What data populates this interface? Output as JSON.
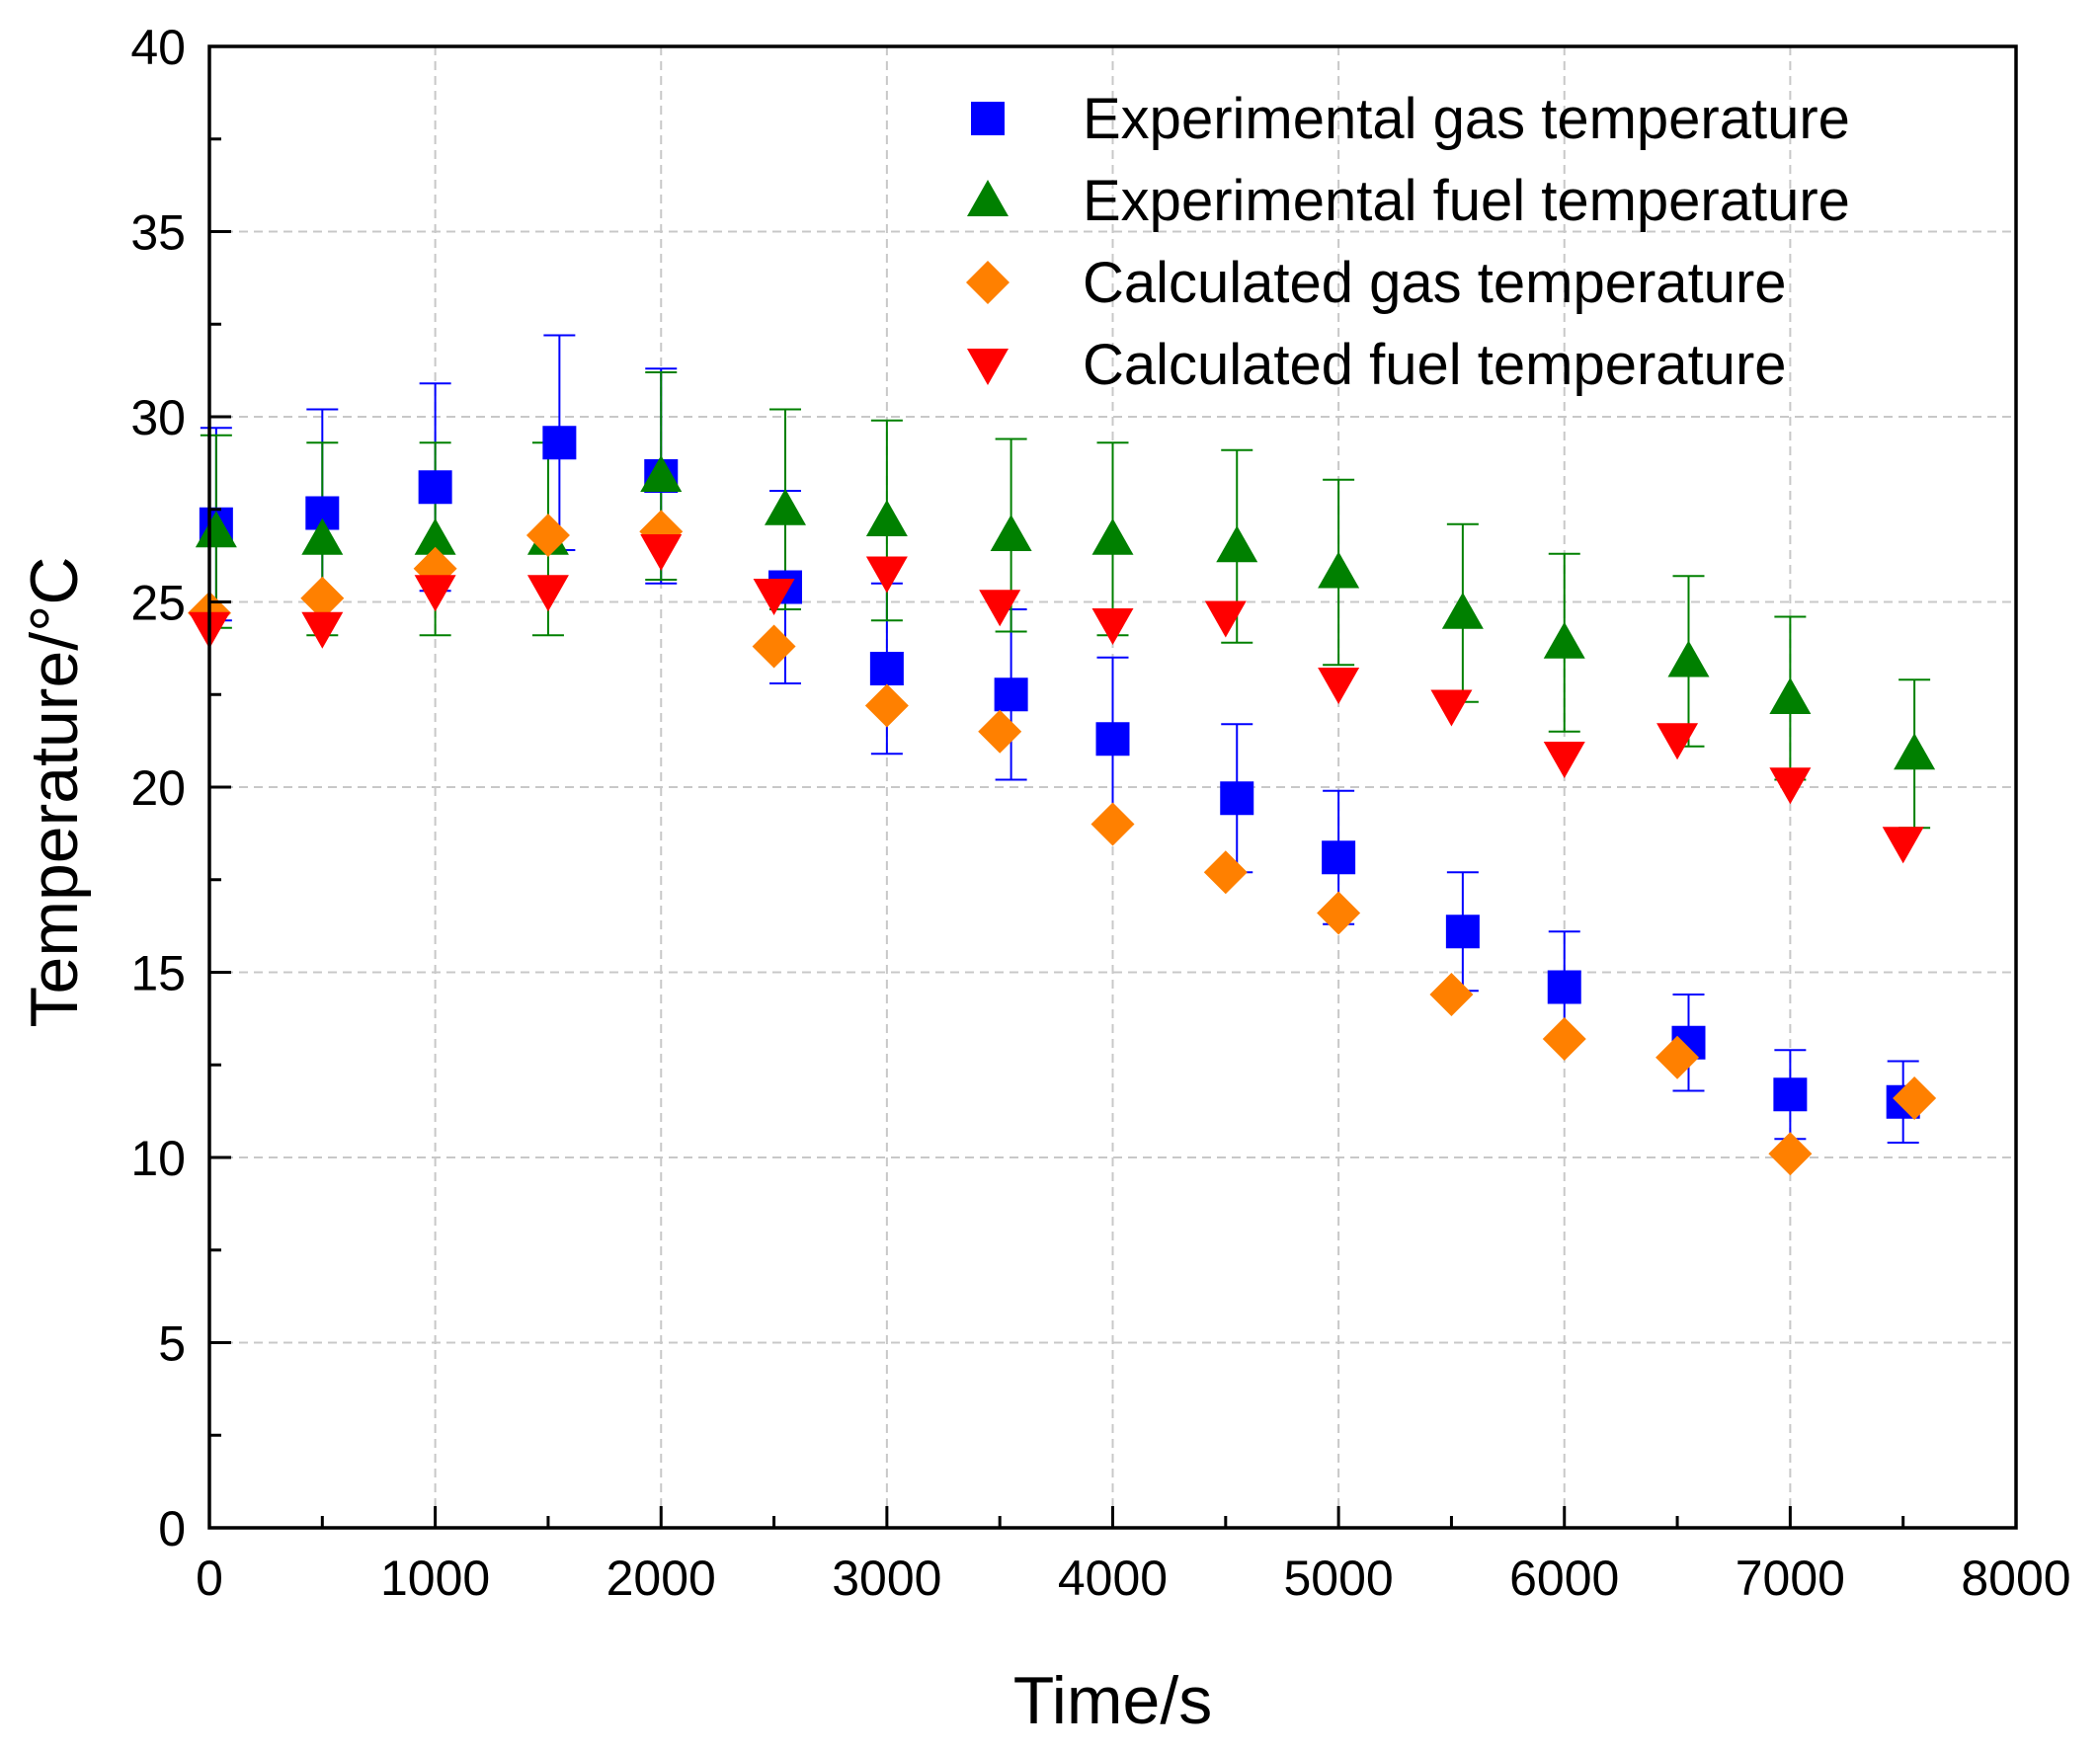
{
  "chart_data": {
    "type": "scatter",
    "title": "",
    "xlabel": "Time/s",
    "ylabel": "Temperature/°C",
    "xlim": [
      0,
      8000
    ],
    "ylim": [
      0,
      40
    ],
    "xticks": [
      "0",
      "1000",
      "2000",
      "3000",
      "4000",
      "5000",
      "6000",
      "7000",
      "8000"
    ],
    "yticks": [
      "0",
      "5",
      "10",
      "15",
      "20",
      "25",
      "30",
      "35",
      "40"
    ],
    "grid": true,
    "legend_position": "top-right",
    "series": [
      {
        "name": "Experimental gas temperature",
        "marker": "square",
        "color": "#0000ff",
        "x": [
          30,
          500,
          1000,
          1550,
          2000,
          2550,
          3000,
          3550,
          4000,
          4550,
          5000,
          5550,
          6000,
          6550,
          7000,
          7500
        ],
        "y": [
          27.1,
          27.4,
          28.1,
          29.3,
          28.4,
          25.4,
          23.2,
          22.5,
          21.3,
          19.7,
          18.1,
          16.1,
          14.6,
          13.1,
          11.7,
          11.5
        ],
        "err": [
          2.6,
          2.8,
          2.8,
          2.9,
          2.9,
          2.6,
          2.3,
          2.3,
          2.2,
          2.0,
          1.8,
          1.6,
          1.5,
          1.3,
          1.2,
          1.1
        ]
      },
      {
        "name": "Experimental fuel temperature",
        "marker": "triangle-up",
        "color": "#008000",
        "x": [
          30,
          500,
          1000,
          1500,
          2000,
          2550,
          3000,
          3550,
          4000,
          4550,
          5000,
          5550,
          6000,
          6550,
          7000,
          7550
        ],
        "y": [
          26.9,
          26.7,
          26.7,
          26.7,
          28.4,
          27.5,
          27.2,
          26.8,
          26.7,
          26.5,
          25.8,
          24.7,
          23.9,
          23.4,
          22.4,
          20.9
        ],
        "err": [
          2.6,
          2.6,
          2.6,
          2.6,
          2.8,
          2.7,
          2.7,
          2.6,
          2.6,
          2.6,
          2.5,
          2.4,
          2.4,
          2.3,
          2.2,
          2.0
        ]
      },
      {
        "name": "Calculated gas temperature",
        "marker": "diamond",
        "color": "#ff8000",
        "x": [
          0,
          500,
          1000,
          1500,
          2000,
          2500,
          3000,
          3500,
          4000,
          4500,
          5000,
          5500,
          6000,
          6500,
          7000,
          7550
        ],
        "y": [
          24.7,
          25.1,
          25.9,
          26.8,
          26.9,
          23.8,
          22.2,
          21.5,
          19.0,
          17.7,
          16.6,
          14.4,
          13.2,
          12.7,
          10.1,
          11.6
        ]
      },
      {
        "name": "Calculated fuel temperature",
        "marker": "triangle-down",
        "color": "#ff0000",
        "x": [
          0,
          500,
          1000,
          1500,
          2000,
          2500,
          3000,
          3500,
          4000,
          4500,
          5000,
          5500,
          6000,
          6500,
          7000,
          7500
        ],
        "y": [
          24.3,
          24.3,
          25.3,
          25.3,
          26.4,
          25.2,
          25.8,
          24.9,
          24.4,
          24.6,
          22.8,
          22.2,
          20.8,
          21.3,
          20.1,
          18.5
        ]
      }
    ]
  }
}
